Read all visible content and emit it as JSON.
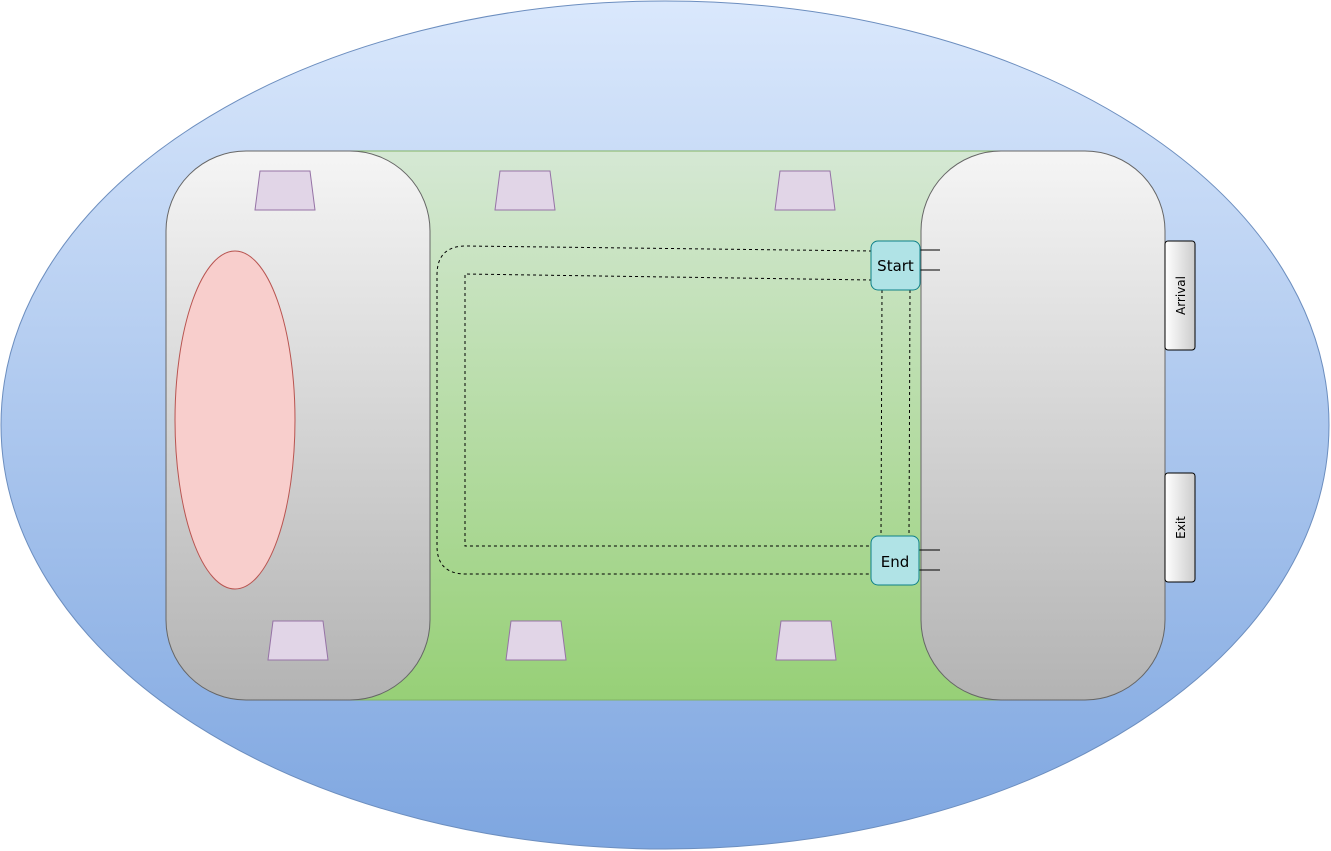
{
  "labels": {
    "start": "Start",
    "end": "End",
    "arrival": "Arrival",
    "exit": "Exit"
  },
  "colors": {
    "outer_ellipse_top": "#dae8fc",
    "outer_ellipse_bottom": "#7ea6e0",
    "outer_ellipse_stroke": "#6c8ebf",
    "field_top": "#d5e8d4",
    "field_bottom": "#97d077",
    "field_stroke": "#82b366",
    "stand_top": "#f5f5f5",
    "stand_bottom": "#b3b3b3",
    "stand_stroke": "#666666",
    "red_ellipse_fill": "#f8cecc",
    "red_ellipse_stroke": "#b85450",
    "trapezoid_fill": "#e1d5e7",
    "trapezoid_stroke": "#9673a6",
    "node_fill": "#b0e3e6",
    "node_stroke": "#0e8088",
    "gate_top": "#ffffff",
    "gate_bottom": "#cccccc"
  }
}
